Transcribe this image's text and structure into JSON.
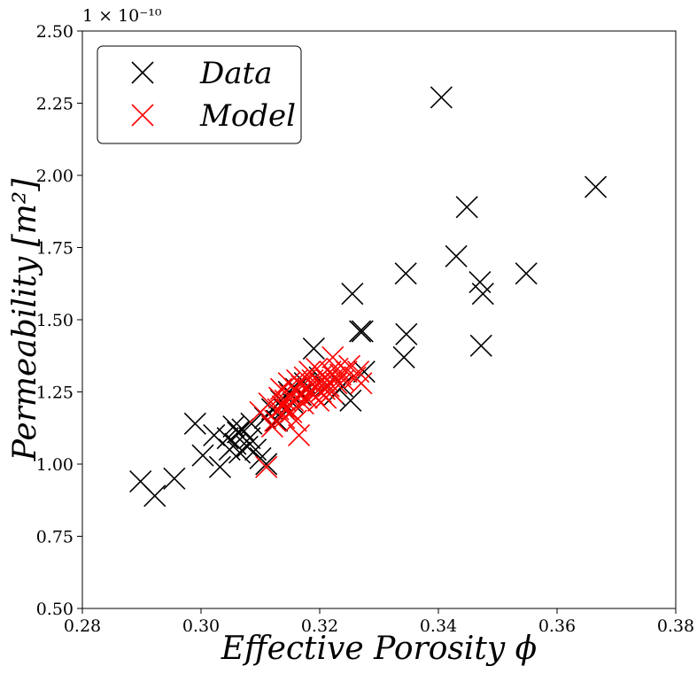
{
  "chart_data": {
    "type": "scatter",
    "xlabel": "Effective Porosity ϕ",
    "ylabel": "Permeability [m²]",
    "y_offset_label": "1 × 10⁻¹⁰",
    "xlim": [
      0.28,
      0.38
    ],
    "ylim": [
      0.5,
      2.5
    ],
    "x_ticks": [
      "0.28",
      "0.30",
      "0.32",
      "0.34",
      "0.36",
      "0.38"
    ],
    "y_ticks": [
      "0.50",
      "0.75",
      "1.00",
      "1.25",
      "1.50",
      "1.75",
      "2.00",
      "2.25",
      "2.50"
    ],
    "grid": false,
    "legend_position": "top-left",
    "marker": "x",
    "colors": {
      "Data": "#000000",
      "Model": "#ff0000"
    },
    "series": [
      {
        "name": "Data",
        "points": [
          [
            0.2898,
            0.94
          ],
          [
            0.2922,
            0.89
          ],
          [
            0.2955,
            0.95
          ],
          [
            0.299,
            1.14
          ],
          [
            0.3003,
            1.03
          ],
          [
            0.3022,
            1.1
          ],
          [
            0.3032,
            0.99
          ],
          [
            0.3045,
            1.09
          ],
          [
            0.3048,
            1.05
          ],
          [
            0.3055,
            1.13
          ],
          [
            0.3058,
            1.07
          ],
          [
            0.3062,
            1.11
          ],
          [
            0.3065,
            1.04
          ],
          [
            0.307,
            1.12
          ],
          [
            0.3078,
            1.06
          ],
          [
            0.3082,
            1.09
          ],
          [
            0.3085,
            1.14
          ],
          [
            0.3092,
            1.05
          ],
          [
            0.31,
            1.02
          ],
          [
            0.3108,
            1.16
          ],
          [
            0.311,
            1.0
          ],
          [
            0.312,
            1.19
          ],
          [
            0.3128,
            1.15
          ],
          [
            0.3135,
            1.22
          ],
          [
            0.314,
            1.19
          ],
          [
            0.3148,
            1.25
          ],
          [
            0.3155,
            1.21
          ],
          [
            0.316,
            1.26
          ],
          [
            0.3168,
            1.24
          ],
          [
            0.3175,
            1.28
          ],
          [
            0.319,
            1.4
          ],
          [
            0.32,
            1.3
          ],
          [
            0.321,
            1.27
          ],
          [
            0.3225,
            1.24
          ],
          [
            0.3238,
            1.27
          ],
          [
            0.3252,
            1.22
          ],
          [
            0.3255,
            1.59
          ],
          [
            0.3268,
            1.46
          ],
          [
            0.3272,
            1.46
          ],
          [
            0.3275,
            1.32
          ],
          [
            0.3342,
            1.37
          ],
          [
            0.3345,
            1.66
          ],
          [
            0.3346,
            1.45
          ],
          [
            0.3405,
            2.27
          ],
          [
            0.343,
            1.72
          ],
          [
            0.3448,
            1.89
          ],
          [
            0.347,
            1.63
          ],
          [
            0.3472,
            1.41
          ],
          [
            0.3475,
            1.59
          ],
          [
            0.3548,
            1.66
          ],
          [
            0.3665,
            1.96
          ]
        ]
      },
      {
        "name": "Model",
        "points": [
          [
            0.31,
            1.18
          ],
          [
            0.311,
            0.99
          ],
          [
            0.3115,
            1.21
          ],
          [
            0.312,
            1.13
          ],
          [
            0.3125,
            1.15
          ],
          [
            0.313,
            1.19
          ],
          [
            0.3132,
            1.23
          ],
          [
            0.3135,
            1.26
          ],
          [
            0.3138,
            1.2
          ],
          [
            0.314,
            1.16
          ],
          [
            0.3142,
            1.22
          ],
          [
            0.3145,
            1.19
          ],
          [
            0.3148,
            1.28
          ],
          [
            0.315,
            1.24
          ],
          [
            0.3152,
            1.18
          ],
          [
            0.3155,
            1.22
          ],
          [
            0.3158,
            1.26
          ],
          [
            0.316,
            1.15
          ],
          [
            0.3162,
            1.29
          ],
          [
            0.3165,
            1.1
          ],
          [
            0.3166,
            1.24
          ],
          [
            0.317,
            1.27
          ],
          [
            0.3172,
            1.21
          ],
          [
            0.3175,
            1.3
          ],
          [
            0.3178,
            1.23
          ],
          [
            0.318,
            1.26
          ],
          [
            0.3183,
            1.32
          ],
          [
            0.3185,
            1.25
          ],
          [
            0.3188,
            1.29
          ],
          [
            0.319,
            1.24
          ],
          [
            0.3192,
            1.27
          ],
          [
            0.3195,
            1.33
          ],
          [
            0.3198,
            1.22
          ],
          [
            0.32,
            1.28
          ],
          [
            0.3202,
            1.25
          ],
          [
            0.3205,
            1.31
          ],
          [
            0.3208,
            1.26
          ],
          [
            0.321,
            1.23
          ],
          [
            0.3212,
            1.29
          ],
          [
            0.3215,
            1.27
          ],
          [
            0.3218,
            1.32
          ],
          [
            0.322,
            1.25
          ],
          [
            0.3222,
            1.37
          ],
          [
            0.3225,
            1.3
          ],
          [
            0.3228,
            1.28
          ],
          [
            0.323,
            1.33
          ],
          [
            0.3235,
            1.31
          ],
          [
            0.324,
            1.29
          ],
          [
            0.3245,
            1.32
          ],
          [
            0.325,
            1.34
          ],
          [
            0.326,
            1.3
          ],
          [
            0.3265,
            1.32
          ],
          [
            0.327,
            1.28
          ]
        ]
      }
    ]
  }
}
